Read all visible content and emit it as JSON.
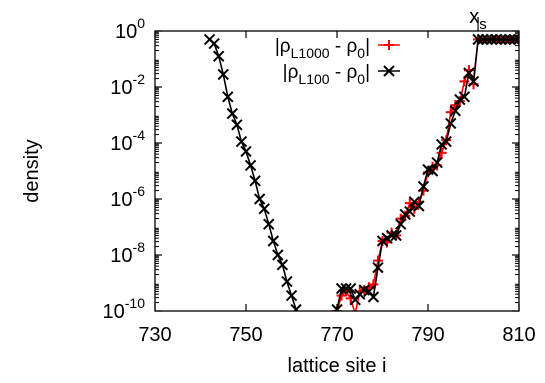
{
  "chart_data": {
    "type": "scatter",
    "title": "",
    "xlabel": "lattice site i",
    "ylabel": "density",
    "xlim": [
      730,
      810
    ],
    "ylim_log10": [
      -10,
      0
    ],
    "yscale": "log",
    "grid": false,
    "legend_position": "top-center",
    "x_ticks": [
      730,
      750,
      770,
      790,
      810
    ],
    "y_ticks": [
      {
        "base": "10",
        "exp": "0"
      },
      {
        "base": "10",
        "exp": "-2"
      },
      {
        "base": "10",
        "exp": "-4"
      },
      {
        "base": "10",
        "exp": "-6"
      },
      {
        "base": "10",
        "exp": "-8"
      },
      {
        "base": "10",
        "exp": "-10"
      }
    ],
    "annotation": {
      "label": "x",
      "subscript": "s",
      "x": 801
    },
    "series": [
      {
        "name_main": "|ρ",
        "name_sub": "L1000",
        "name_tail": " - ρ",
        "name_sub2": "0",
        "name_end": "|",
        "color": "#ff0000",
        "marker": "plus",
        "points": [
          [
            770,
            -10.0
          ],
          [
            771,
            -9.45
          ],
          [
            772,
            -9.3
          ],
          [
            773,
            -9.55
          ],
          [
            774,
            -10.1
          ],
          [
            775,
            -9.3
          ],
          [
            776,
            -9.25
          ],
          [
            777,
            -9.15
          ],
          [
            778,
            -9.05
          ],
          [
            779,
            -8.2
          ],
          [
            780,
            -7.5
          ],
          [
            781,
            -7.55
          ],
          [
            782,
            -7.2
          ],
          [
            783,
            -7.3
          ],
          [
            784,
            -6.7
          ],
          [
            785,
            -6.6
          ],
          [
            786,
            -6.15
          ],
          [
            787,
            -6.35
          ],
          [
            788,
            -6.1
          ],
          [
            789,
            -5.7
          ],
          [
            790,
            -5.05
          ],
          [
            791,
            -4.85
          ],
          [
            792,
            -4.8
          ],
          [
            793,
            -4.35
          ],
          [
            794,
            -3.9
          ],
          [
            795,
            -2.9
          ],
          [
            796,
            -2.65
          ],
          [
            797,
            -2.5
          ],
          [
            798,
            -1.8
          ],
          [
            799,
            -1.4
          ],
          [
            800,
            -1.9
          ],
          [
            801,
            -0.3
          ],
          [
            802,
            -0.3
          ],
          [
            803,
            -0.3
          ],
          [
            804,
            -0.3
          ],
          [
            805,
            -0.3
          ],
          [
            806,
            -0.3
          ],
          [
            807,
            -0.3
          ],
          [
            808,
            -0.3
          ],
          [
            809,
            -0.3
          ],
          [
            810,
            -0.3
          ]
        ]
      },
      {
        "name_main": "|ρ",
        "name_sub": "L100",
        "name_tail": " - ρ",
        "name_sub2": "0",
        "name_end": "|",
        "color": "#000000",
        "marker": "cross",
        "points": [
          [
            742,
            -0.3
          ],
          [
            743,
            -0.45
          ],
          [
            744,
            -0.9
          ],
          [
            745,
            -1.55
          ],
          [
            746,
            -2.35
          ],
          [
            747,
            -2.95
          ],
          [
            748,
            -3.35
          ],
          [
            749,
            -3.95
          ],
          [
            750,
            -4.3
          ],
          [
            751,
            -4.8
          ],
          [
            752,
            -5.35
          ],
          [
            753,
            -6.0
          ],
          [
            754,
            -6.35
          ],
          [
            755,
            -6.9
          ],
          [
            756,
            -7.5
          ],
          [
            757,
            -8.0
          ],
          [
            758,
            -8.35
          ],
          [
            759,
            -8.95
          ],
          [
            760,
            -9.45
          ],
          [
            761,
            -9.95
          ],
          [
            770,
            -9.95
          ],
          [
            771,
            -9.2
          ],
          [
            772,
            -9.2
          ],
          [
            773,
            -9.2
          ],
          [
            774,
            -9.6
          ],
          [
            775,
            -9.4
          ],
          [
            776,
            -9.25
          ],
          [
            777,
            -9.3
          ],
          [
            778,
            -9.5
          ],
          [
            779,
            -8.45
          ],
          [
            780,
            -7.5
          ],
          [
            781,
            -7.4
          ],
          [
            782,
            -7.3
          ],
          [
            783,
            -7.3
          ],
          [
            784,
            -6.9
          ],
          [
            785,
            -6.55
          ],
          [
            786,
            -6.45
          ],
          [
            787,
            -6.1
          ],
          [
            788,
            -6.25
          ],
          [
            789,
            -5.55
          ],
          [
            790,
            -4.95
          ],
          [
            791,
            -5.0
          ],
          [
            792,
            -4.7
          ],
          [
            793,
            -4.05
          ],
          [
            794,
            -3.95
          ],
          [
            795,
            -3.3
          ],
          [
            796,
            -2.85
          ],
          [
            797,
            -2.45
          ],
          [
            798,
            -2.35
          ],
          [
            799,
            -1.5
          ],
          [
            800,
            -1.8
          ],
          [
            801,
            -0.3
          ],
          [
            802,
            -0.3
          ],
          [
            803,
            -0.3
          ],
          [
            804,
            -0.3
          ],
          [
            805,
            -0.3
          ],
          [
            806,
            -0.3
          ],
          [
            807,
            -0.3
          ],
          [
            808,
            -0.3
          ],
          [
            809,
            -0.3
          ],
          [
            810,
            -0.3
          ]
        ]
      }
    ]
  }
}
